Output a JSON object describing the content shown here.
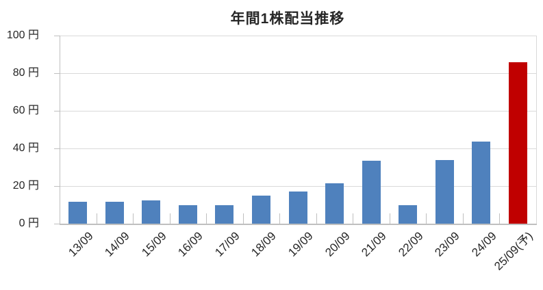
{
  "chart_data": {
    "type": "bar",
    "title": "年間1株配当推移",
    "categories": [
      "13/09",
      "14/09",
      "15/09",
      "16/09",
      "17/09",
      "18/09",
      "19/09",
      "20/09",
      "21/09",
      "22/09",
      "23/09",
      "24/09",
      "25/09(予)"
    ],
    "values": [
      11.5,
      11.5,
      12.5,
      10,
      10,
      15,
      17,
      21.5,
      33.5,
      10,
      34,
      43.5,
      86
    ],
    "unit": "円",
    "xlabel": "",
    "ylabel": "",
    "ylim": [
      0,
      100
    ],
    "ytick_interval": 20,
    "ytick_labels": [
      "100 円",
      "80 円",
      "60 円",
      "40 円",
      "20 円",
      "0 円"
    ],
    "grid": true,
    "legend": "none",
    "forecast_index": 12,
    "forecast_category": "25/09(予)",
    "colors": {
      "bar_default": "#4F81BD",
      "bar_forecast": "#C00000",
      "gridline": "#D9D9D9",
      "axis": "#BFBFBF",
      "text": "#262626",
      "background": "#FFFFFF"
    }
  }
}
